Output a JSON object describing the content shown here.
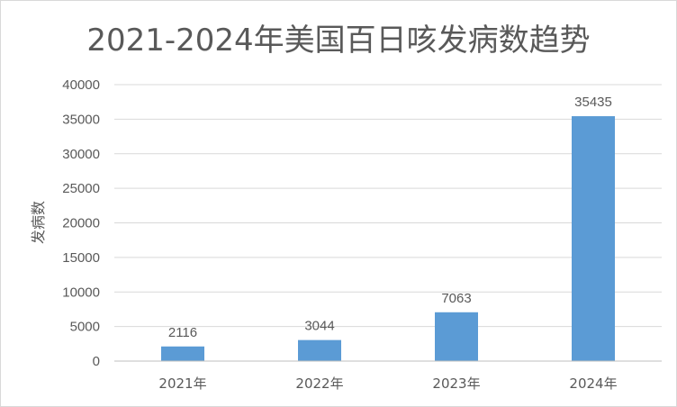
{
  "chart_data": {
    "type": "bar",
    "title": "2021-2024年美国百日咳发病数趋势",
    "xlabel": "",
    "ylabel": "发病数",
    "categories": [
      "2021年",
      "2022年",
      "2023年",
      "2024年"
    ],
    "series": [
      {
        "values": [
          2116,
          3044,
          7063,
          35435
        ]
      }
    ],
    "ylim": [
      0,
      40000
    ],
    "yticks": [
      0,
      5000,
      10000,
      15000,
      20000,
      25000,
      30000,
      35000,
      40000
    ],
    "grid": true,
    "legend": "none",
    "data_labels": true,
    "bar_color": "#5b9bd5",
    "grid_color": "#d9d9d9",
    "text_color": "#595959"
  }
}
